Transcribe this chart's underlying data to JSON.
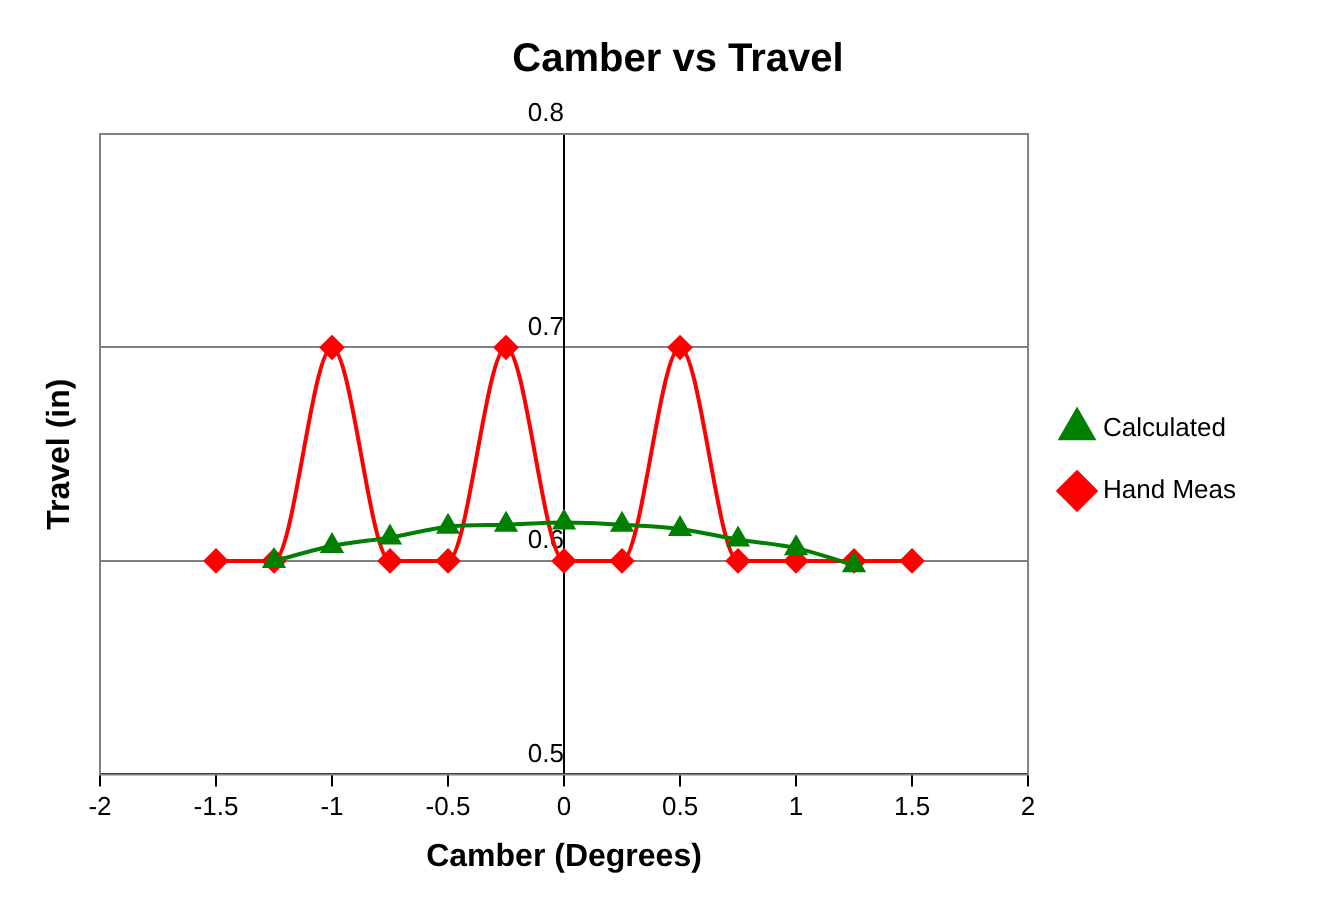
{
  "chart_data": {
    "type": "line",
    "title": "Camber vs Travel",
    "xlabel": "Camber (Degrees)",
    "ylabel": "Travel (in)",
    "series": [
      {
        "name": "Hand Meas",
        "color": "#ff0000",
        "marker": "diamond",
        "x": [
          -1.5,
          -1.25,
          -1,
          -0.75,
          -0.5,
          -0.25,
          0,
          0.25,
          0.5,
          0.75,
          1,
          1.25,
          1.5
        ],
        "values": [
          0.6,
          0.6,
          0.7,
          0.6,
          0.6,
          0.7,
          0.6,
          0.6,
          0.7,
          0.6,
          0.6,
          0.6,
          0.6
        ]
      },
      {
        "name": "Calculated",
        "color": "#008000",
        "marker": "triangle",
        "x": [
          -1.25,
          -1,
          -0.75,
          -0.5,
          -0.25,
          0,
          0.25,
          0.5,
          0.75,
          1,
          1.25
        ],
        "values": [
          0.6,
          0.607,
          0.611,
          0.616,
          0.617,
          0.618,
          0.617,
          0.615,
          0.61,
          0.606,
          0.598
        ]
      }
    ],
    "xlim": [
      -2,
      2
    ],
    "xticks": [
      -2,
      -1.5,
      -1,
      -0.5,
      0,
      0.5,
      1,
      1.5,
      2
    ],
    "ylim": [
      0.5,
      0.8
    ],
    "yticks": [
      0.5,
      0.6,
      0.7,
      0.8
    ],
    "grid": "y",
    "legend": "right",
    "line_style": "solid"
  }
}
